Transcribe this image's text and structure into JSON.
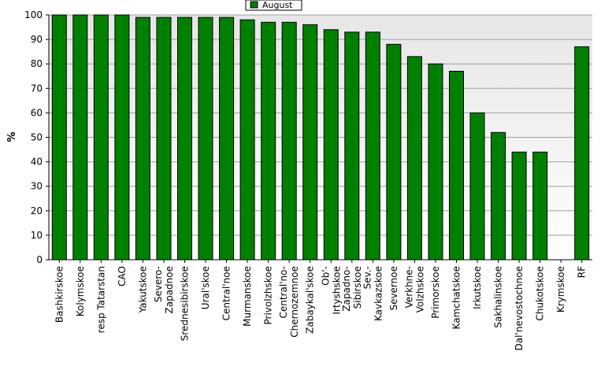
{
  "chart_data": {
    "type": "bar",
    "ylabel": "%",
    "xlabel": "",
    "title": "",
    "ylim": [
      0,
      100
    ],
    "yticks": [
      0,
      10,
      20,
      30,
      40,
      50,
      60,
      70,
      80,
      90,
      100
    ],
    "grid": true,
    "legend_position": "top-center",
    "categories": [
      "Bashkirskoe",
      "Kolymskoe",
      "resp Tatarstan",
      "CAO",
      "Yakutskoe",
      "Severo-\nZapadnoe",
      "Srednesibirskoe",
      "Ural'skoe",
      "Central'noe",
      "Murmanskoe",
      "Privolzhskoe",
      "Central'no-\nChernozemnoe",
      "Zabaykal'skoe",
      "Ob'-\nIrtyshskoe",
      "Zapadno-\nSibirskoe",
      "Sev.-\nKavkazskoe",
      "Severnoe",
      "Verkhne-\nVolzhskoe",
      "Primorskoe",
      "Kamchatskoe",
      "Irkutskoe",
      "Sakhalinskoe",
      "Dal'nevostochnoe",
      "Chukotskoe",
      "Krymskoe",
      "RF"
    ],
    "series": [
      {
        "name": "August",
        "color": "#008000",
        "values": [
          100,
          100,
          100,
          100,
          99,
          99,
          99,
          99,
          99,
          98,
          97,
          97,
          96,
          94,
          93,
          93,
          88,
          83,
          80,
          77,
          60,
          52,
          44,
          44,
          0,
          87
        ]
      }
    ]
  }
}
